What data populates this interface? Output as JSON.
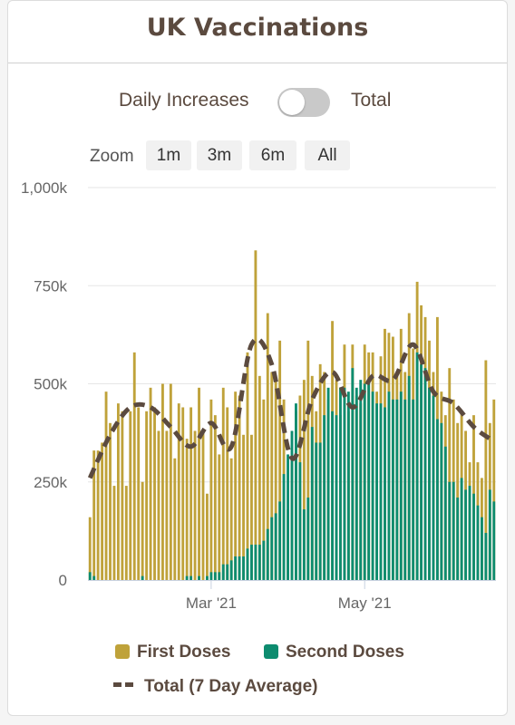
{
  "title": "UK Vaccinations",
  "toggle": {
    "left_label": "Daily Increases",
    "right_label": "Total",
    "state": "off"
  },
  "zoom": {
    "label": "Zoom",
    "options": [
      "1m",
      "3m",
      "6m",
      "All"
    ]
  },
  "colors": {
    "first": "#bfa23a",
    "second": "#0d8c6f",
    "line": "#5b4a3f",
    "grid": "#e6e6e6",
    "text": "#5b4a3f"
  },
  "chart_data": {
    "type": "bar",
    "stacked": false,
    "x_ticks": [
      {
        "label": "Mar '21",
        "index": 30
      },
      {
        "label": "May '21",
        "index": 68
      }
    ],
    "y_ticks": [
      "0",
      "250k",
      "500k",
      "750k",
      "1,000k"
    ],
    "ylim": [
      0,
      1000000
    ],
    "grid": true,
    "legend_position": "bottom",
    "series": [
      {
        "name": "First Doses",
        "values": [
          160000,
          330000,
          330000,
          350000,
          480000,
          400000,
          240000,
          450000,
          430000,
          240000,
          430000,
          580000,
          440000,
          250000,
          430000,
          490000,
          440000,
          380000,
          500000,
          380000,
          500000,
          310000,
          450000,
          440000,
          360000,
          440000,
          380000,
          490000,
          380000,
          220000,
          460000,
          420000,
          320000,
          490000,
          440000,
          310000,
          480000,
          470000,
          370000,
          580000,
          370000,
          840000,
          520000,
          460000,
          680000,
          530000,
          510000,
          610000,
          460000,
          180000,
          310000,
          430000,
          470000,
          510000,
          610000,
          520000,
          430000,
          550000,
          530000,
          460000,
          660000,
          510000,
          420000,
          600000,
          430000,
          600000,
          470000,
          450000,
          600000,
          580000,
          580000,
          480000,
          570000,
          640000,
          630000,
          620000,
          520000,
          640000,
          530000,
          680000,
          590000,
          760000,
          700000,
          670000,
          610000,
          530000,
          670000,
          480000,
          420000,
          540000,
          460000,
          400000,
          430000,
          380000,
          300000,
          420000,
          300000,
          260000,
          560000,
          400000,
          460000
        ]
      },
      {
        "name": "Second Doses",
        "values": [
          20000,
          10000,
          0,
          0,
          0,
          0,
          0,
          0,
          0,
          0,
          0,
          0,
          0,
          10000,
          0,
          0,
          0,
          0,
          0,
          0,
          0,
          0,
          0,
          0,
          10000,
          10000,
          0,
          10000,
          0,
          10000,
          20000,
          20000,
          20000,
          40000,
          40000,
          50000,
          60000,
          60000,
          60000,
          80000,
          90000,
          90000,
          90000,
          100000,
          130000,
          160000,
          170000,
          200000,
          270000,
          320000,
          380000,
          450000,
          300000,
          180000,
          210000,
          390000,
          350000,
          350000,
          420000,
          490000,
          430000,
          420000,
          490000,
          490000,
          480000,
          540000,
          490000,
          510000,
          500000,
          510000,
          480000,
          450000,
          450000,
          440000,
          480000,
          460000,
          460000,
          480000,
          460000,
          520000,
          460000,
          580000,
          550000,
          540000,
          490000,
          470000,
          410000,
          400000,
          340000,
          250000,
          250000,
          210000,
          260000,
          230000,
          240000,
          220000,
          190000,
          160000,
          120000,
          230000,
          200000
        ]
      },
      {
        "name": "Total (7 Day Average)",
        "x": [
          0,
          5,
          10,
          15,
          20,
          25,
          30,
          35,
          40,
          45,
          50,
          55,
          60,
          65,
          70,
          75,
          80,
          85,
          90,
          95,
          99
        ],
        "values": [
          260000,
          370000,
          440000,
          440000,
          390000,
          340000,
          400000,
          340000,
          600000,
          550000,
          310000,
          460000,
          530000,
          440000,
          520000,
          510000,
          600000,
          480000,
          450000,
          390000,
          360000
        ]
      }
    ]
  }
}
